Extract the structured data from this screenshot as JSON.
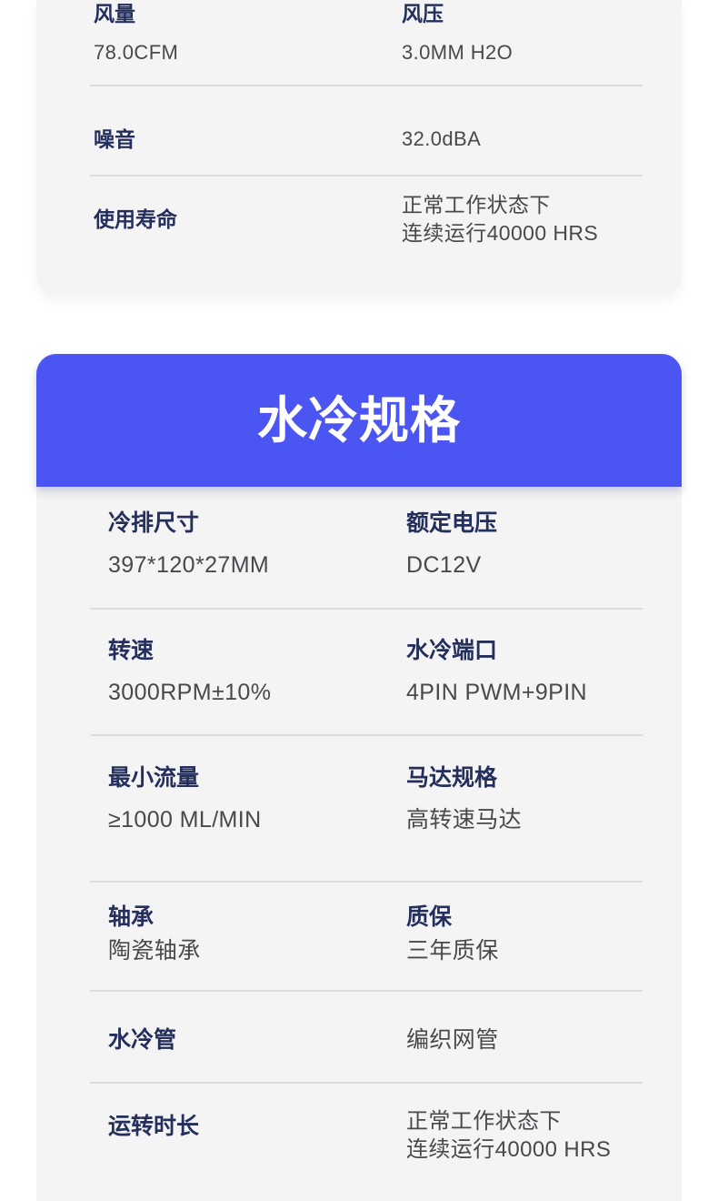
{
  "colors": {
    "page_bg": "#ffffff",
    "card_bg": "#f4f4f5",
    "accent_blue": "#4b55f2",
    "label_navy": "#252f5c",
    "value_gray": "#48494d",
    "divider": "#dcdcde",
    "title_white": "#ffffff"
  },
  "fan_card": {
    "rows": {
      "r1": {
        "left": {
          "label": "风量",
          "value": "78.0CFM"
        },
        "right": {
          "label": "风压",
          "value": "3.0MM H2O"
        }
      },
      "r2": {
        "left": {
          "label": "噪音"
        },
        "right": {
          "value": "32.0dBA"
        }
      },
      "r3": {
        "left": {
          "label": "使用寿命"
        },
        "right": {
          "line1": "正常工作状态下",
          "line2": "连续运行40000 HRS"
        }
      }
    }
  },
  "cooling_card": {
    "title": "水冷规格",
    "rows": {
      "r1": {
        "left": {
          "label": "冷排尺寸",
          "value": "397*120*27MM"
        },
        "right": {
          "label": "额定电压",
          "value": "DC12V"
        }
      },
      "r2": {
        "left": {
          "label": "转速",
          "value": "3000RPM±10%"
        },
        "right": {
          "label": "水冷端口",
          "value": "4PIN PWM+9PIN"
        }
      },
      "r3": {
        "left": {
          "label": "最小流量",
          "value": "≥1000 ML/MIN"
        },
        "right": {
          "label": "马达规格",
          "value": "高转速马达"
        }
      },
      "r4": {
        "left": {
          "label": "轴承",
          "value": "陶瓷轴承"
        },
        "right": {
          "label": "质保",
          "value": "三年质保"
        }
      },
      "r5": {
        "left": {
          "label": "水冷管"
        },
        "right": {
          "value": "编织网管"
        }
      },
      "r6": {
        "left": {
          "label": "运转时长"
        },
        "right": {
          "line1": "正常工作状态下",
          "line2": "连续运行40000 HRS"
        }
      }
    }
  }
}
